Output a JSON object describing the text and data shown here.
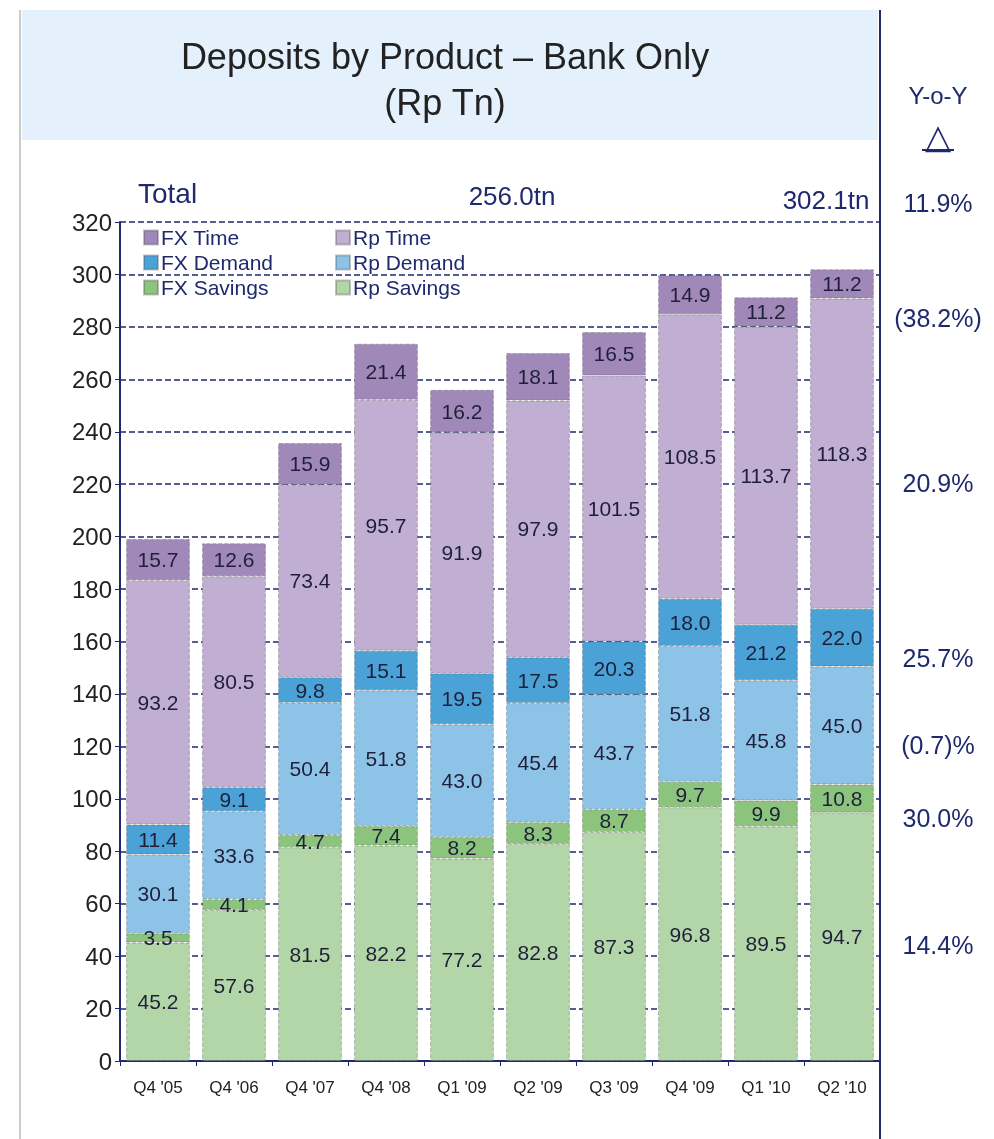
{
  "chart_data": {
    "type": "bar",
    "title": "Deposits by Product – Bank Only\n(Rp Tn)",
    "categories": [
      "Q4 '05",
      "Q4 '06",
      "Q4 '07",
      "Q4 '08",
      "Q1 '09",
      "Q2 '09",
      "Q3 '09",
      "Q4 '09",
      "Q1 '10",
      "Q2 '10"
    ],
    "stacked": true,
    "series": [
      {
        "name": "Rp Savings",
        "color": "#b3d6a8",
        "values": [
          45.2,
          57.6,
          81.5,
          82.2,
          77.2,
          82.8,
          87.3,
          96.8,
          89.5,
          94.7
        ],
        "value_labels": [
          "45.2",
          "57.6",
          "81.5",
          "82.2",
          "77.2",
          "82.8",
          "87.3",
          "96.8",
          "89.5",
          "94.7"
        ]
      },
      {
        "name": "FX Savings",
        "color": "#8cc47e",
        "values": [
          3.5,
          4.1,
          4.7,
          7.4,
          8.2,
          8.3,
          8.7,
          9.7,
          9.9,
          10.8
        ],
        "value_labels": [
          "3.5",
          "4.1",
          "4.7",
          "7.4",
          "8.2",
          "8.3",
          "8.7",
          "9.7",
          "9.9",
          "10.8"
        ]
      },
      {
        "name": "Rp Demand",
        "color": "#8ec3e8",
        "values": [
          30.1,
          33.6,
          50.4,
          51.8,
          43.0,
          45.4,
          43.7,
          51.8,
          45.8,
          45.0
        ],
        "value_labels": [
          "30.1",
          "33.6",
          "50.4",
          "51.8",
          "43.0",
          "45.4",
          "43.7",
          "51.8",
          "45.8",
          "45.0"
        ]
      },
      {
        "name": "FX Demand",
        "color": "#4aa2d6",
        "values": [
          11.4,
          9.1,
          9.8,
          15.1,
          19.5,
          17.5,
          20.3,
          18.0,
          21.2,
          22.0
        ],
        "value_labels": [
          "11.4",
          "9.1",
          "9.8",
          "15.1",
          "19.5",
          "17.5",
          "20.3",
          "18.0",
          "21.2",
          "22.0"
        ]
      },
      {
        "name": "Rp Time",
        "color": "#c0aed3",
        "values": [
          93.2,
          80.5,
          73.4,
          95.7,
          91.9,
          97.9,
          101.5,
          108.5,
          113.7,
          118.3
        ],
        "value_labels": [
          "93.2",
          "80.5",
          "73.4",
          "95.7",
          "91.9",
          "97.9",
          "101.5",
          "108.5",
          "113.7",
          "118.3"
        ]
      },
      {
        "name": "FX Time",
        "color": "#a088b8",
        "values": [
          15.7,
          12.6,
          15.9,
          21.4,
          16.2,
          18.1,
          16.5,
          14.9,
          11.2,
          11.2
        ],
        "value_labels": [
          "15.7",
          "12.6",
          "15.9",
          "21.4",
          "16.2",
          "18.1",
          "16.5",
          "14.9",
          "11.2",
          "11.2"
        ]
      }
    ],
    "ylim": [
      0,
      320
    ],
    "yticks": [
      0,
      20,
      40,
      60,
      80,
      100,
      120,
      140,
      160,
      180,
      200,
      220,
      240,
      260,
      280,
      300,
      320
    ],
    "grid": "y",
    "legend": "top left",
    "annotations": [
      "Total",
      "256.0tn",
      "302.1tn",
      "Y-o-Y",
      "△",
      "11.9%",
      "(38.2%)",
      "20.9%",
      "25.7%",
      "(0.7)%",
      "30.0%",
      "14.4%"
    ]
  }
}
